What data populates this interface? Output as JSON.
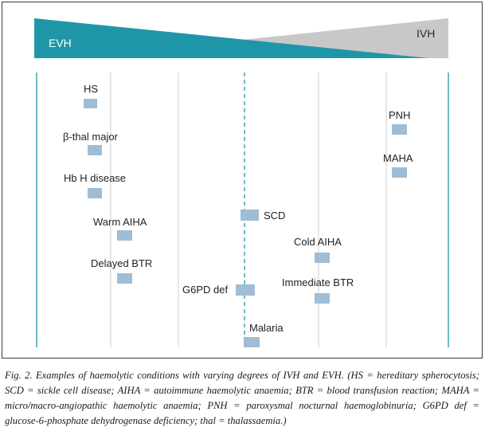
{
  "banner": {
    "left_label": "EVH",
    "right_label": "IVH",
    "left_color": "#1f96a8",
    "right_color": "#c8c8c8"
  },
  "conditions": [
    {
      "id": "hs",
      "label": "HS"
    },
    {
      "id": "bthal",
      "label": "β-thal major"
    },
    {
      "id": "hbh",
      "label": "Hb H disease"
    },
    {
      "id": "waiha",
      "label": "Warm AIHA"
    },
    {
      "id": "dbtr",
      "label": "Delayed BTR"
    },
    {
      "id": "g6pd",
      "label": "G6PD def"
    },
    {
      "id": "scd",
      "label": "SCD"
    },
    {
      "id": "malaria",
      "label": "Malaria"
    },
    {
      "id": "caiha",
      "label": "Cold AIHA"
    },
    {
      "id": "ibtr",
      "label": "Immediate BTR"
    },
    {
      "id": "pnh",
      "label": "PNH"
    },
    {
      "id": "maha",
      "label": "MAHA"
    }
  ],
  "colors": {
    "marker": "#9fbdd4",
    "axis_line": "#1f96a8",
    "grid_line": "#cfcfcf"
  },
  "caption": "Fig. 2. Examples of haemolytic conditions with varying degrees of IVH and EVH. (HS = hereditary spherocytosis; SCD = sickle cell disease; AIHA = autoimmune haemolytic anaemia; BTR = blood transfusion reaction; MAHA = micro/macro-angiopathic haemolytic anaemia; PNH = paroxysmal nocturnal haemoglobinuria; G6PD def = glucose-6-phosphate dehydrogenase deficiency; thal = thalassaemia.)"
}
